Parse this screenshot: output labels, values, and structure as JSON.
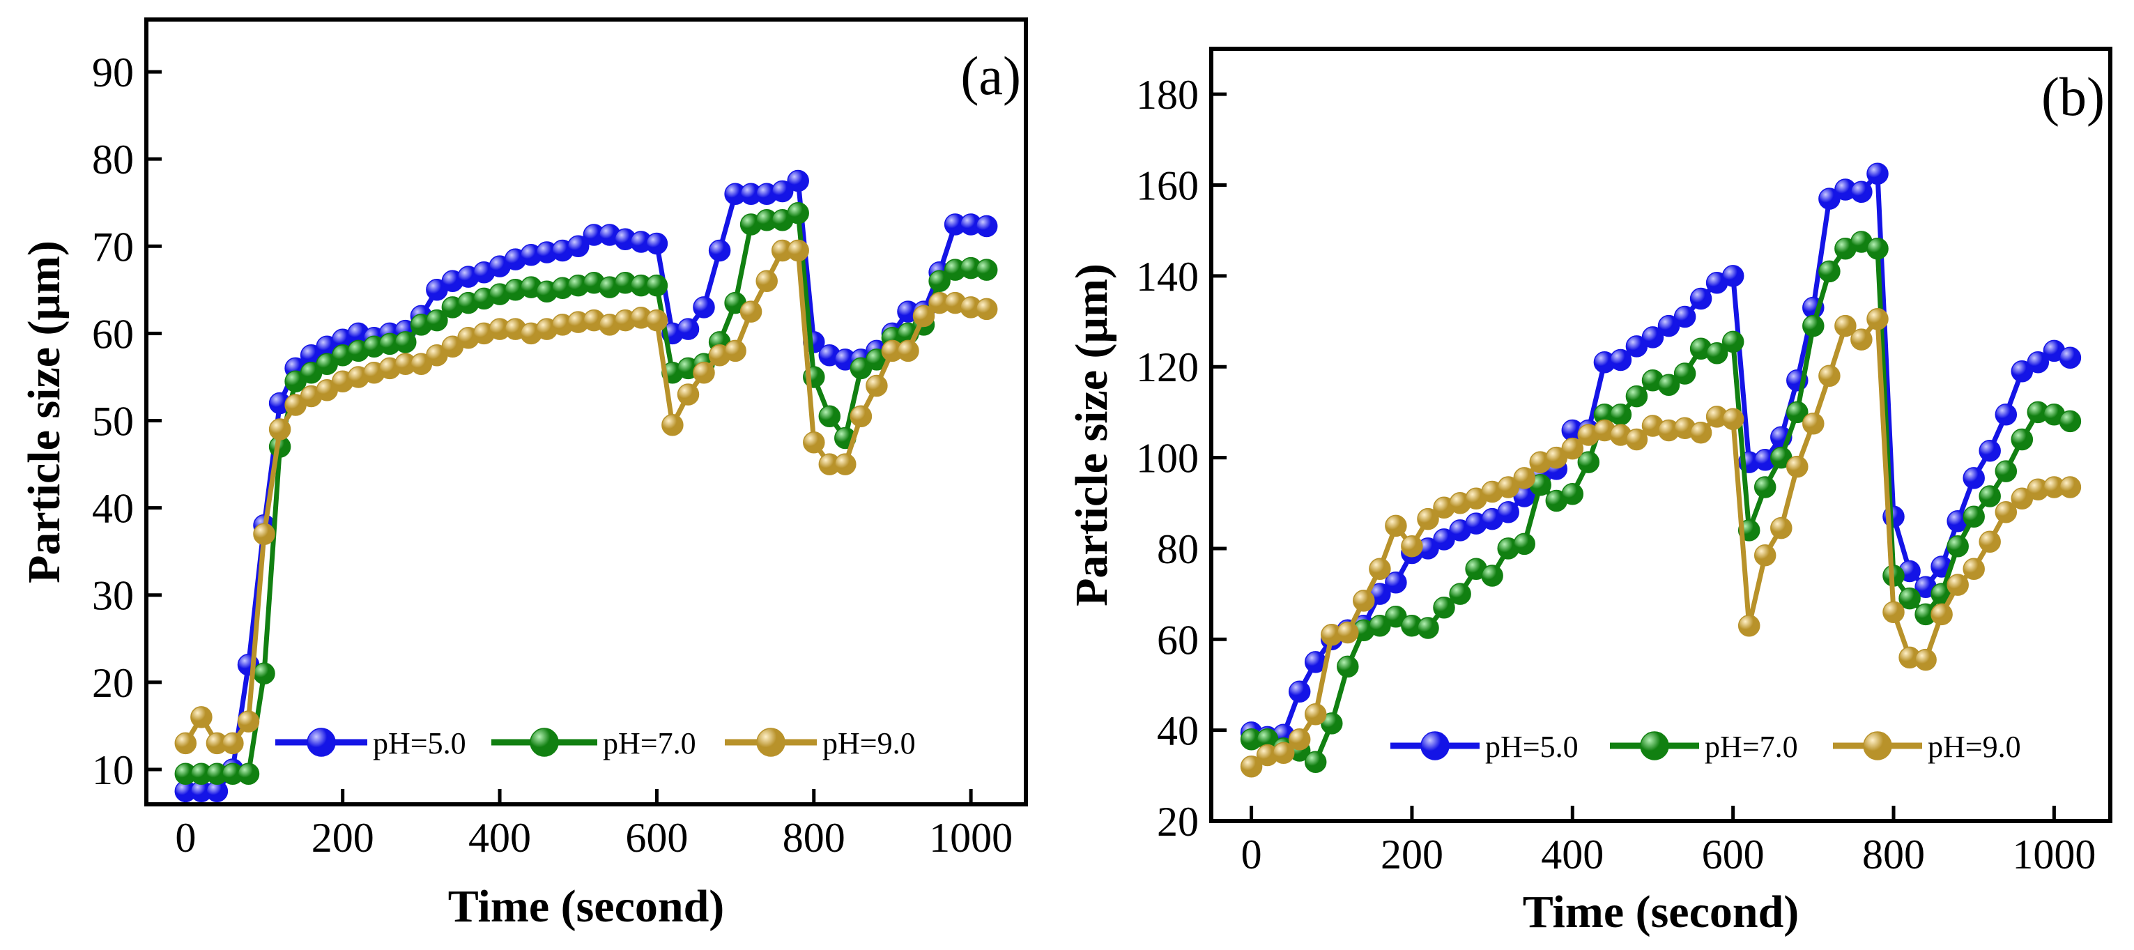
{
  "colors": {
    "pH5": "#1414e6",
    "pH5_highlight": "#c8c8ff",
    "pH7": "#118011",
    "pH7_highlight": "#b4f0b4",
    "pH9": "#b8922a",
    "pH9_highlight": "#fff0c8"
  },
  "chart_data": [
    {
      "panel": "(a)",
      "type": "line",
      "xlabel": "Time (second)",
      "ylabel": "Particle size (μm)",
      "xlim": [
        -50,
        1070
      ],
      "ylim": [
        6,
        96
      ],
      "xticks": [
        0,
        200,
        400,
        600,
        800,
        1000
      ],
      "yticks": [
        10,
        20,
        30,
        40,
        50,
        60,
        70,
        80,
        90
      ],
      "legend_position": "bottom-right",
      "x": [
        0,
        20,
        40,
        60,
        80,
        100,
        120,
        140,
        160,
        180,
        200,
        220,
        240,
        260,
        280,
        300,
        320,
        340,
        360,
        380,
        400,
        420,
        440,
        460,
        480,
        500,
        520,
        540,
        560,
        580,
        600,
        620,
        640,
        660,
        680,
        700,
        720,
        740,
        760,
        780,
        800,
        820,
        840,
        860,
        880,
        900,
        920,
        940,
        960,
        980,
        1000,
        1020
      ],
      "series": [
        {
          "name": "pH=5.0",
          "values": [
            7.5,
            7.5,
            7.5,
            10,
            22,
            38,
            52,
            56,
            57.5,
            58.5,
            59.3,
            60,
            59.5,
            60,
            60.3,
            62,
            65,
            66,
            66.5,
            67,
            67.7,
            68.5,
            69,
            69.3,
            69.5,
            70,
            71.3,
            71.3,
            70.8,
            70.5,
            70.3,
            60,
            60.5,
            63,
            69.5,
            76,
            76,
            76,
            76.3,
            77.5,
            59,
            57.5,
            57,
            57,
            58,
            60,
            62.5,
            62.5,
            67,
            72.5,
            72.5,
            72.3
          ]
        },
        {
          "name": "pH=7.0",
          "values": [
            9.5,
            9.5,
            9.5,
            9.5,
            9.5,
            21,
            47,
            54.5,
            55.5,
            56.5,
            57.5,
            58,
            58.5,
            58.8,
            59,
            61,
            61.5,
            63,
            63.5,
            64,
            64.5,
            65,
            65.3,
            64.8,
            65.2,
            65.5,
            65.8,
            65.3,
            65.8,
            65.5,
            65.5,
            55.5,
            56,
            56.5,
            59,
            63.5,
            72.5,
            73,
            73,
            73.8,
            55,
            50.5,
            48,
            56,
            57,
            59.5,
            60,
            61,
            66,
            67.3,
            67.5,
            67.3
          ]
        },
        {
          "name": "pH=9.0",
          "values": [
            13,
            16,
            13,
            13,
            15.5,
            37,
            49,
            51.8,
            52.8,
            53.5,
            54.5,
            55,
            55.5,
            56,
            56.5,
            56.5,
            57.5,
            58.5,
            59.5,
            60,
            60.5,
            60.5,
            60,
            60.5,
            61,
            61.3,
            61.5,
            61,
            61.5,
            61.8,
            61.5,
            49.5,
            53,
            55.5,
            57.5,
            58,
            62.5,
            66,
            69.5,
            69.5,
            47.5,
            45,
            45,
            50.5,
            54,
            58,
            58,
            62,
            63.5,
            63.5,
            63,
            62.8
          ]
        }
      ]
    },
    {
      "panel": "(b)",
      "type": "line",
      "xlabel": "Time (second)",
      "ylabel": "Particle size (μm)",
      "xlim": [
        -50,
        1070
      ],
      "ylim": [
        20,
        190
      ],
      "xticks": [
        0,
        200,
        400,
        600,
        800,
        1000
      ],
      "yticks": [
        20,
        40,
        60,
        80,
        100,
        120,
        140,
        160,
        180
      ],
      "legend_position": "bottom-right",
      "x": [
        0,
        20,
        40,
        60,
        80,
        100,
        120,
        140,
        160,
        180,
        200,
        220,
        240,
        260,
        280,
        300,
        320,
        340,
        360,
        380,
        400,
        420,
        440,
        460,
        480,
        500,
        520,
        540,
        560,
        580,
        600,
        620,
        640,
        660,
        680,
        700,
        720,
        740,
        760,
        780,
        800,
        820,
        840,
        860,
        880,
        900,
        920,
        940,
        960,
        980,
        1000,
        1020
      ],
      "series": [
        {
          "name": "pH=5.0",
          "values": [
            39.5,
            38.5,
            39,
            48.5,
            55,
            60,
            62,
            63,
            70,
            72.5,
            79,
            80,
            82,
            84,
            85.5,
            86.5,
            88,
            91.5,
            96,
            97.5,
            106,
            106,
            121,
            121.5,
            124.5,
            126.5,
            129,
            131,
            135,
            138.5,
            140,
            99,
            99.5,
            104.5,
            117,
            133,
            157,
            159,
            158.5,
            162.5,
            87,
            75,
            71.5,
            76,
            86,
            95.5,
            101.5,
            109.5,
            119,
            121,
            123.5,
            122
          ]
        },
        {
          "name": "pH=7.0",
          "values": [
            38,
            38,
            36,
            35.5,
            33,
            41.5,
            54,
            62,
            63,
            65,
            63,
            62.5,
            67,
            70,
            75.5,
            74,
            80,
            81,
            94,
            90.5,
            92,
            99,
            109.5,
            109.5,
            113.5,
            117,
            116,
            118.5,
            124,
            123,
            125.5,
            84,
            93.5,
            100,
            110,
            129,
            141,
            146,
            147.5,
            146,
            74,
            69,
            65.5,
            70,
            80.5,
            87,
            91.5,
            97,
            104,
            110,
            109.5,
            108
          ]
        },
        {
          "name": "pH=9.0",
          "values": [
            32,
            34.5,
            35,
            38,
            43.5,
            61,
            61.5,
            68.5,
            75.5,
            85,
            80.5,
            86.5,
            89,
            90,
            91,
            92.5,
            93.5,
            95.5,
            99,
            100,
            102,
            105,
            106,
            105,
            104,
            107,
            106,
            106.5,
            105.5,
            109,
            108.5,
            63,
            78.5,
            84.5,
            98,
            107.5,
            118,
            129,
            126,
            130.5,
            66,
            56,
            55.5,
            65.5,
            72,
            75.5,
            81.5,
            88,
            91,
            93,
            93.5,
            93.5
          ]
        }
      ]
    }
  ]
}
